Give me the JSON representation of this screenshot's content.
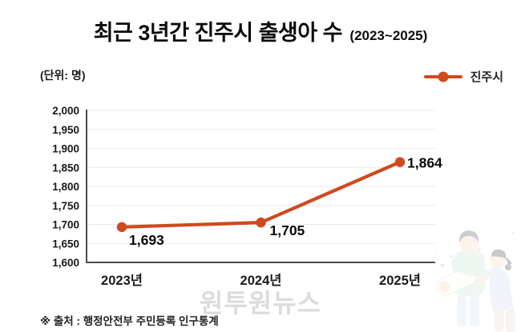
{
  "title": {
    "main": "최근 3년간 진주시 출생아 수",
    "period": "(2023~2025)"
  },
  "unit_label": "(단위: 명)",
  "legend": {
    "series_label": "진주시"
  },
  "chart_data": {
    "type": "line",
    "title": "최근 3년간 진주시 출생아 수 (2023~2025)",
    "categories": [
      "2023년",
      "2024년",
      "2025년"
    ],
    "series": [
      {
        "name": "진주시",
        "values": [
          1693,
          1705,
          1864
        ],
        "value_labels": [
          "1,693",
          "1,705",
          "1,864"
        ],
        "color": "#cf4a1e"
      }
    ],
    "xlabel": "",
    "ylabel": "명",
    "ylim": [
      1600,
      2000
    ],
    "ytick_step": 50,
    "ytick_labels": [
      "1,600",
      "1,650",
      "1,700",
      "1,750",
      "1,800",
      "1,850",
      "1,900",
      "1,950",
      "2,000"
    ],
    "grid": true,
    "legend_position": "top-right"
  },
  "colors": {
    "accent_line": "#cf4a1e",
    "grid": "#e8e8e8",
    "axis": "#4d4d4d",
    "tick_text": "#1a1a1a",
    "data_label_text": "#0a0a0a",
    "watermark": "#c6c6c6"
  },
  "watermark": "원투원뉴스",
  "source_note": "※ 출처 : 행정안전부 주민등록 인구통계",
  "illustration": {
    "name": "family-with-baby-illustration"
  }
}
